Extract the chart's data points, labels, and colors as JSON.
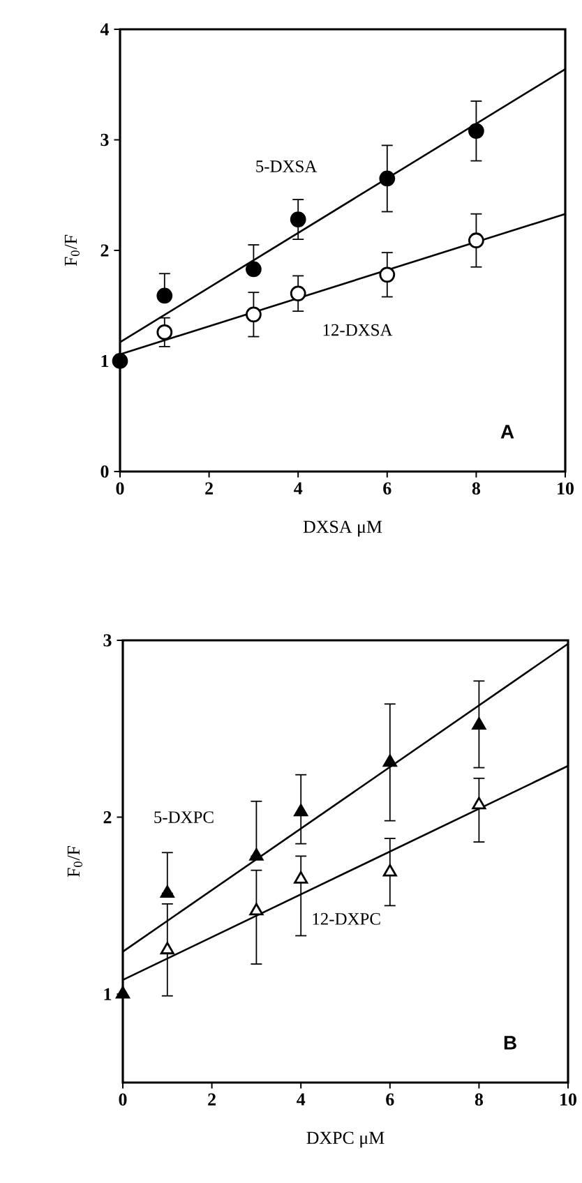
{
  "chart_data": [
    {
      "type": "scatter",
      "xlabel": "DXSA μM",
      "ylabel": "F$_{0}$/F",
      "annotations": [
        "A"
      ],
      "xlim": [
        0,
        10
      ],
      "ylim": [
        0,
        4
      ],
      "xticks": [
        0,
        2,
        4,
        6,
        8,
        10
      ],
      "yticks": [
        0,
        1,
        2,
        3,
        4
      ],
      "marker": "circle",
      "series": [
        {
          "name": "5-DXSA",
          "color": "#000000",
          "x": [
            0,
            1,
            3,
            4,
            6,
            8
          ],
          "values": [
            1.0,
            1.59,
            1.83,
            2.28,
            2.65,
            3.08
          ],
          "errors": [
            null,
            [
              1.59,
              1.79
            ],
            [
              1.83,
              2.05
            ],
            0.18,
            0.3,
            0.27
          ]
        },
        {
          "name": "12-DXSA",
          "color": "#ffffff",
          "x": [
            1,
            3,
            4,
            6,
            8
          ],
          "values": [
            1.26,
            1.42,
            1.61,
            1.78,
            2.09
          ],
          "errors": [
            [
              1.13,
              1.39
            ],
            [
              1.22,
              1.62
            ],
            0.16,
            0.2,
            0.24
          ]
        },
        {
          "type": "line",
          "marker": "none",
          "color": "#000000",
          "x": [
            0,
            10
          ],
          "values": [
            1.17,
            3.64
          ]
        },
        {
          "type": "line",
          "marker": "none",
          "color": "#000000",
          "x": [
            0,
            10
          ],
          "values": [
            1.06,
            2.33
          ]
        }
      ]
    },
    {
      "type": "scatter",
      "xlabel": "DXPC  μM",
      "ylabel": "F$_{0}$/F",
      "annotations": [
        "B"
      ],
      "xlim": [
        0,
        10
      ],
      "ylim": [
        0.5,
        3
      ],
      "xticks": [
        0,
        2,
        4,
        6,
        8,
        10
      ],
      "yticks": [
        1,
        2,
        3
      ],
      "marker": "triangle",
      "series": [
        {
          "name": "5-DXPC",
          "color": "#000000",
          "x": [
            0,
            1,
            3,
            4,
            6,
            8
          ],
          "values": [
            1.0,
            1.57,
            1.78,
            2.03,
            2.31,
            2.52
          ],
          "errors": [
            null,
            [
              1.57,
              1.8
            ],
            [
              1.78,
              2.09
            ],
            [
              1.85,
              2.24
            ],
            0.33,
            [
              2.28,
              2.77
            ]
          ]
        },
        {
          "name": "12-DXPC",
          "color": "#ffffff",
          "x": [
            1,
            3,
            4,
            6,
            8
          ],
          "values": [
            1.25,
            1.47,
            1.65,
            1.69,
            2.07
          ],
          "errors": [
            [
              0.99,
              1.51
            ],
            [
              1.17,
              1.7
            ],
            [
              1.33,
              1.78
            ],
            0.19,
            [
              1.86,
              2.22
            ]
          ]
        },
        {
          "type": "line",
          "marker": "none",
          "color": "#000000",
          "x": [
            0,
            10
          ],
          "values": [
            1.24,
            2.98
          ]
        },
        {
          "type": "line",
          "marker": "none",
          "color": "#000000",
          "x": [
            0,
            10
          ],
          "values": [
            1.08,
            2.29
          ]
        }
      ]
    }
  ]
}
